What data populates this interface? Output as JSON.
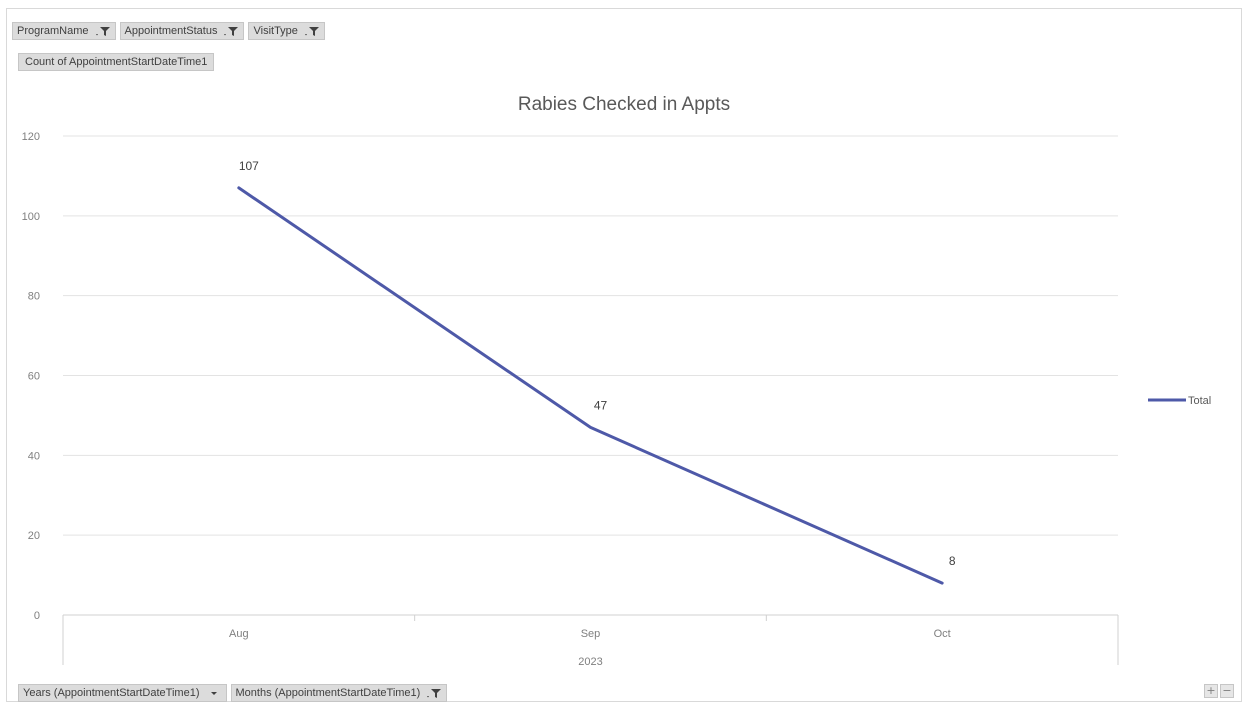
{
  "filters": {
    "program_name": "ProgramName",
    "appointment_status": "AppointmentStatus",
    "visit_type": "VisitType"
  },
  "values_field": "Count of AppointmentStartDateTime1",
  "axis_fields": {
    "years": "Years (AppointmentStartDateTime1)",
    "months": "Months (AppointmentStartDateTime1)"
  },
  "zoom": {
    "expand": "+",
    "collapse": "−"
  },
  "colors": {
    "series_line": "#4e59a8",
    "gridline": "#e3e3e3",
    "axis_line": "#d0d0d0"
  },
  "chart_data": {
    "type": "line",
    "title": "Rabies Checked in Appts",
    "categories": [
      "Aug",
      "Sep",
      "Oct"
    ],
    "group_label": "2023",
    "series": [
      {
        "name": "Total",
        "values": [
          107,
          47,
          8
        ]
      }
    ],
    "ylim": [
      0,
      120
    ],
    "yticks": [
      0,
      20,
      40,
      60,
      80,
      100,
      120
    ],
    "grid": true,
    "legend_position": "right",
    "data_labels": true
  }
}
